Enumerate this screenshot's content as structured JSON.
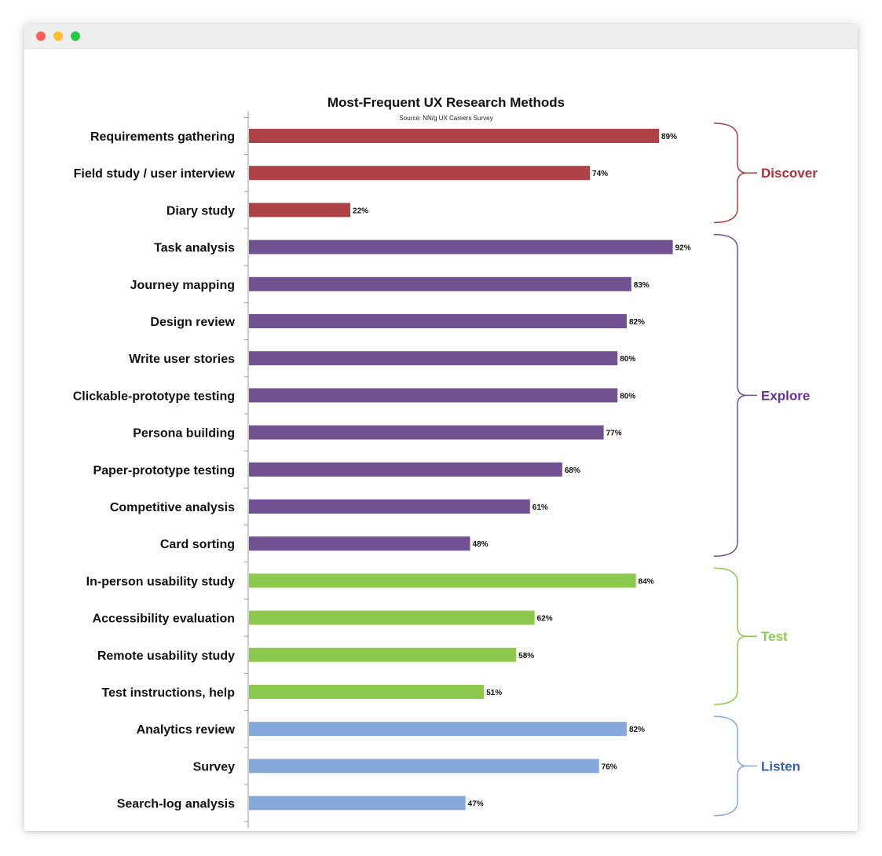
{
  "window": {
    "controls": [
      "close",
      "minimize",
      "zoom"
    ]
  },
  "chart_data": {
    "type": "bar",
    "orientation": "horizontal",
    "title": "Most-Frequent UX Research Methods",
    "subtitle": "Source: NN/g UX Careers Survey",
    "value_format": "percent",
    "xlim": [
      0,
      100
    ],
    "grid": false,
    "legend": "none",
    "categories": [
      "Requirements gathering",
      "Field study / user interview",
      "Diary study",
      "Task analysis",
      "Journey mapping",
      "Design review",
      "Write user stories",
      "Clickable-prototype testing",
      "Persona building",
      "Paper-prototype testing",
      "Competitive analysis",
      "Card sorting",
      "In-person usability study",
      "Accessibility evaluation",
      "Remote usability study",
      "Test instructions, help",
      "Analytics review",
      "Survey",
      "Search-log analysis"
    ],
    "values": [
      89,
      74,
      22,
      92,
      83,
      82,
      80,
      80,
      77,
      68,
      61,
      48,
      84,
      62,
      58,
      51,
      82,
      76,
      47
    ],
    "value_labels": [
      "89%",
      "74%",
      "22%",
      "92%",
      "83%",
      "82%",
      "80%",
      "80%",
      "77%",
      "68%",
      "61%",
      "48%",
      "84%",
      "62%",
      "58%",
      "51%",
      "82%",
      "76%",
      "47%"
    ],
    "groups": [
      {
        "label": "Discover",
        "start": 0,
        "end": 2,
        "color": "#ae4247"
      },
      {
        "label": "Explore",
        "start": 3,
        "end": 11,
        "color": "#725192"
      },
      {
        "label": "Test",
        "start": 12,
        "end": 15,
        "color": "#8dc94f"
      },
      {
        "label": "Listen",
        "start": 16,
        "end": 18,
        "color": "#86a8da"
      }
    ],
    "group_label_colors": {
      "Discover": "#a8323a",
      "Explore": "#6b2f93",
      "Test": "#8dc94f",
      "Listen": "#355fa8"
    }
  }
}
